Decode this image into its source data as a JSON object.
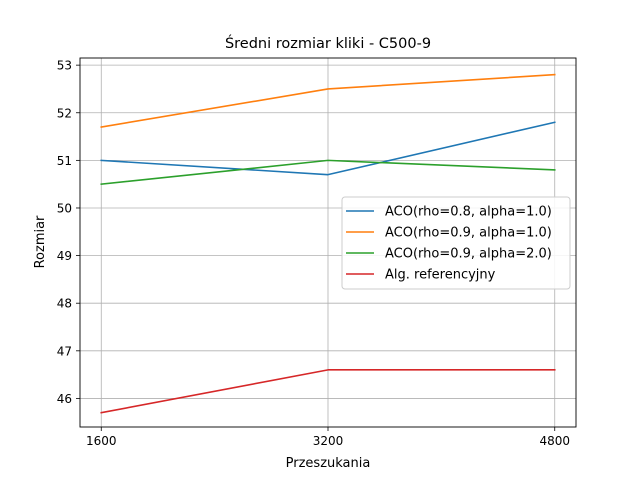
{
  "chart_data": {
    "type": "line",
    "title": "Średni rozmiar kliki - C500-9",
    "xlabel": "Przeszukania",
    "ylabel": "Rozmiar",
    "x": [
      1600,
      3200,
      4800
    ],
    "x_ticks": [
      "1600",
      "3200",
      "4800"
    ],
    "y_ticks": [
      46,
      47,
      48,
      49,
      50,
      51,
      52,
      53
    ],
    "xlim": [
      1450,
      4950
    ],
    "ylim": [
      45.4,
      53.15
    ],
    "grid": true,
    "legend": "center-right",
    "series": [
      {
        "name": "ACO(rho=0.8, alpha=1.0)",
        "color": "#1f77b4",
        "values": [
          51.0,
          50.7,
          51.8
        ]
      },
      {
        "name": "ACO(rho=0.9, alpha=1.0)",
        "color": "#ff7f0e",
        "values": [
          51.7,
          52.5,
          52.8
        ]
      },
      {
        "name": "ACO(rho=0.9, alpha=2.0)",
        "color": "#2ca02c",
        "values": [
          50.5,
          51.0,
          50.8
        ]
      },
      {
        "name": "Alg. referencyjny",
        "color": "#d62728",
        "values": [
          45.7,
          46.6,
          46.6
        ]
      }
    ]
  }
}
